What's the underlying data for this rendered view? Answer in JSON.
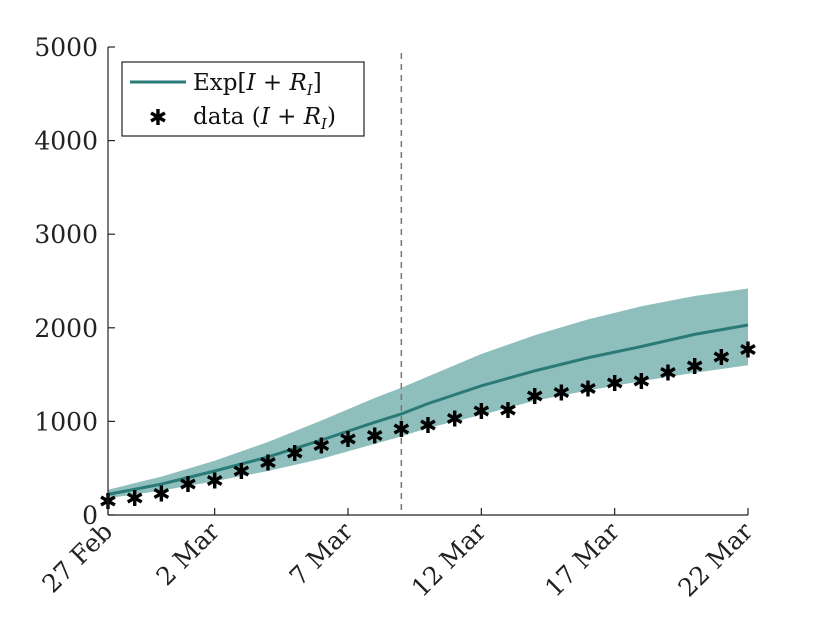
{
  "chart_data": {
    "type": "line",
    "title": "",
    "xlabel": "",
    "ylabel": "",
    "x_start_label": "27 Feb",
    "x_tick_labels": [
      "27 Feb",
      "2 Mar",
      "7 Mar",
      "12 Mar",
      "17 Mar",
      "22 Mar"
    ],
    "x_tick_days": [
      0,
      4,
      9,
      14,
      19,
      24
    ],
    "xlim": [
      0,
      24
    ],
    "ylim": [
      0,
      5000
    ],
    "y_ticks": [
      0,
      1000,
      2000,
      3000,
      4000,
      5000
    ],
    "grid": false,
    "legend_position": "top-left",
    "vertical_marker_day": 11,
    "series": [
      {
        "name": "Exp[I + R_I]",
        "legend_parts": [
          "Exp[",
          "I",
          " + ",
          "R",
          "I",
          "]"
        ],
        "kind": "line",
        "color": "#2a7a78",
        "band_color": "#8fbfbd",
        "x": [
          0,
          2,
          4,
          6,
          8,
          10,
          11,
          12,
          14,
          16,
          18,
          20,
          22,
          24
        ],
        "values": [
          220,
          330,
          470,
          620,
          800,
          990,
          1080,
          1190,
          1380,
          1540,
          1680,
          1800,
          1930,
          2030
        ],
        "lower": [
          180,
          260,
          360,
          470,
          600,
          760,
          840,
          930,
          1070,
          1220,
          1330,
          1430,
          1520,
          1600
        ],
        "upper": [
          270,
          410,
          580,
          780,
          1010,
          1250,
          1360,
          1480,
          1720,
          1920,
          2090,
          2230,
          2340,
          2420
        ]
      },
      {
        "name": "data (I + R_I)",
        "legend_parts": [
          "data (",
          "I",
          " + ",
          "R",
          "I",
          ")"
        ],
        "kind": "scatter",
        "color": "#000000",
        "x": [
          0,
          1,
          2,
          3,
          4,
          5,
          6,
          7,
          8,
          9,
          10,
          11,
          12,
          13,
          14,
          15,
          16,
          17,
          18,
          19,
          20,
          21,
          22,
          23,
          24
        ],
        "values": [
          150,
          180,
          230,
          330,
          370,
          470,
          560,
          660,
          740,
          810,
          850,
          920,
          960,
          1030,
          1110,
          1120,
          1270,
          1310,
          1350,
          1410,
          1430,
          1520,
          1590,
          1690,
          1770
        ]
      }
    ]
  }
}
